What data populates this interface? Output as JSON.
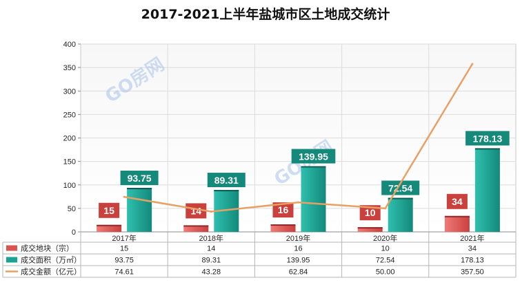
{
  "chart_data": {
    "type": "bar",
    "title": "2017-2021上半年盐城市区土地成交统计",
    "watermark": "GO房网",
    "categories": [
      "2017年",
      "2018年",
      "2019年",
      "2020年",
      "2021年"
    ],
    "ylim": [
      0,
      400
    ],
    "yticks": [
      0,
      50,
      100,
      150,
      200,
      250,
      300,
      350,
      400
    ],
    "series": [
      {
        "name": "成交地块（宗）",
        "kind": "bar",
        "color": "#d9534f",
        "values": [
          15,
          14,
          16,
          10,
          34
        ]
      },
      {
        "name": "成交面积（万㎡）",
        "kind": "bar",
        "color": "#1aa392",
        "values": [
          93.75,
          89.31,
          139.95,
          72.54,
          178.13
        ]
      },
      {
        "name": "成交金额（亿元）",
        "kind": "line",
        "color": "#f0a35c",
        "values": [
          74.61,
          43.28,
          62.84,
          50.0,
          357.5
        ]
      }
    ],
    "table_rows": [
      [
        "15",
        "14",
        "16",
        "10",
        "34"
      ],
      [
        "93.75",
        "89.31",
        "139.95",
        "72.54",
        "178.13"
      ],
      [
        "74.61",
        "43.28",
        "62.84",
        "50.00",
        "357.50"
      ]
    ],
    "grid": true,
    "legend": "data table below plot"
  }
}
